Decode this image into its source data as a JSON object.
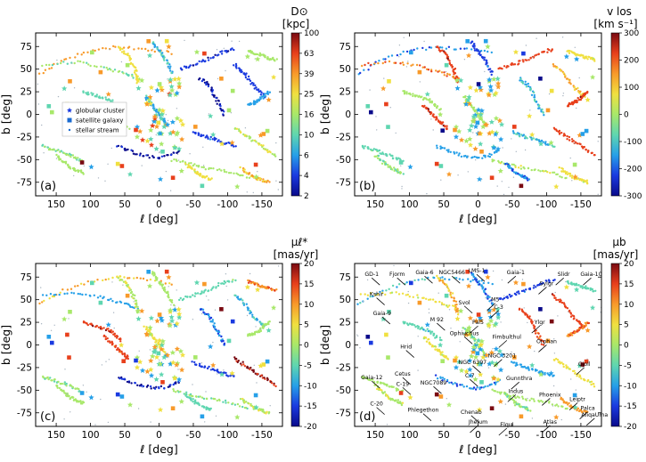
{
  "figure": {
    "panels": [
      {
        "id": "a",
        "panel_label": "(a)",
        "cbar_title": [
          "D⊙",
          "[kpc]"
        ],
        "cbar_ticks": [
          "100",
          "63",
          "39",
          "25",
          "16",
          "10",
          "6",
          "4",
          "2"
        ],
        "cbar_colors": [
          "#0a0a8a",
          "#1a3ae0",
          "#26a0e8",
          "#5fd6b0",
          "#a8e86a",
          "#f0e040",
          "#f89a2a",
          "#e8401c",
          "#7a0a12"
        ],
        "legend": [
          {
            "marker": "star",
            "label": "globular cluster"
          },
          {
            "marker": "square",
            "label": "satellite galaxy"
          },
          {
            "marker": "dot",
            "label": "stellar stream"
          }
        ]
      },
      {
        "id": "b",
        "panel_label": "(b)",
        "cbar_title": [
          "v los",
          "[km s⁻¹]"
        ],
        "cbar_ticks": [
          "300",
          "200",
          "100",
          "0",
          "-100",
          "-200",
          "-300"
        ],
        "cbar_colors": [
          "#0a0a8a",
          "#1a3ae0",
          "#26a0e8",
          "#5fd6b0",
          "#a8e86a",
          "#f0e040",
          "#f89a2a",
          "#e8401c",
          "#7a0a12"
        ]
      },
      {
        "id": "c",
        "panel_label": "(c)",
        "cbar_title": [
          "μℓ*",
          "[mas/yr]"
        ],
        "cbar_ticks": [
          "20",
          "15",
          "10",
          "5",
          "0",
          "-5",
          "-10",
          "-15",
          "-20"
        ],
        "cbar_colors": [
          "#0a0a8a",
          "#1a3ae0",
          "#26a0e8",
          "#5fd6b0",
          "#a8e86a",
          "#f0e040",
          "#f89a2a",
          "#e8401c",
          "#7a0a12"
        ]
      },
      {
        "id": "d",
        "panel_label": "(d)",
        "cbar_title": [
          "μb",
          "[mas/yr]"
        ],
        "cbar_ticks": [
          "20",
          "15",
          "10",
          "5",
          "0",
          "-5",
          "-10",
          "-15",
          "-20"
        ],
        "cbar_colors": [
          "#0a0a8a",
          "#1a3ae0",
          "#26a0e8",
          "#5fd6b0",
          "#a8e86a",
          "#f0e040",
          "#f89a2a",
          "#e8401c",
          "#7a0a12"
        ],
        "annotations": [
          "GD-1",
          "Fjorm",
          "Gaia-6",
          "NGC5466",
          "LMS-1",
          "Gaia-1",
          "Sylgr",
          "Slidr",
          "Gaia-10",
          "Kshir",
          "Svol",
          "M5",
          "C-3",
          "Gaia-9",
          "Pal5",
          "Ylgr",
          "M 92",
          "Ophiuchus",
          "Fimbulthul",
          "Orphan",
          "Hrid",
          "NGC 3201",
          "NGC 6397",
          "C-7",
          "Gunnthra",
          "Gjoll",
          "NGC7089",
          "Gaia-12",
          "Cetus",
          "C-19",
          "Indus",
          "Phoenix",
          "Leiptr",
          "C-20",
          "Phlegethon",
          "Chenab",
          "Palca",
          "AliqaUma",
          "Jhelum",
          "Elqui",
          "Atlas"
        ]
      }
    ]
  },
  "chart_data": [
    {
      "type": "scatter",
      "panel": "a",
      "xlabel": "ℓ [deg]",
      "ylabel": "b [deg]",
      "xlim": [
        180,
        -180
      ],
      "ylim": [
        -90,
        90
      ],
      "xticks": [
        150,
        100,
        50,
        0,
        -50,
        -100,
        -150
      ],
      "yticks": [
        75,
        50,
        25,
        0,
        -25,
        -50,
        -75
      ],
      "colorbar": {
        "label": "D⊙ [kpc]",
        "scale": "log",
        "ticks": [
          100,
          63,
          39,
          25,
          16,
          10,
          6,
          4,
          2
        ]
      },
      "legend": [
        "globular cluster",
        "satellite galaxy",
        "stellar stream"
      ],
      "series": [
        {
          "name": "stellar stream",
          "points": [
            [
              85,
              62
            ],
            [
              70,
              58
            ],
            [
              55,
              55
            ],
            [
              40,
              52
            ],
            [
              -40,
              55
            ],
            [
              -60,
              40
            ],
            [
              -75,
              30
            ],
            [
              -90,
              55
            ],
            [
              -110,
              60
            ],
            [
              -130,
              70
            ],
            [
              60,
              -20
            ],
            [
              40,
              -40
            ],
            [
              10,
              -45
            ],
            [
              -20,
              -50
            ],
            [
              -40,
              -52
            ],
            [
              -60,
              -55
            ],
            [
              -90,
              -60
            ],
            [
              -120,
              -70
            ],
            [
              20,
              15
            ],
            [
              -10,
              10
            ],
            [
              -80,
              35
            ],
            [
              -100,
              25
            ]
          ]
        },
        {
          "name": "globular cluster",
          "points": [
            [
              5,
              5
            ],
            [
              0,
              -10
            ],
            [
              -5,
              15
            ],
            [
              10,
              -20
            ],
            [
              -15,
              5
            ],
            [
              20,
              30
            ],
            [
              30,
              -30
            ],
            [
              -30,
              -20
            ],
            [
              50,
              -35
            ],
            [
              -50,
              25
            ]
          ]
        },
        {
          "name": "satellite galaxy",
          "points": [
            [
              105,
              85
            ],
            [
              130,
              65
            ],
            [
              -90,
              75
            ],
            [
              -100,
              -55
            ],
            [
              -70,
              -60
            ],
            [
              -130,
              -40
            ],
            [
              75,
              -55
            ],
            [
              160,
              -58
            ]
          ]
        }
      ]
    },
    {
      "type": "scatter",
      "panel": "b",
      "xlabel": "ℓ [deg]",
      "ylabel": "b [deg]",
      "xlim": [
        180,
        -180
      ],
      "ylim": [
        -90,
        90
      ],
      "xticks": [
        150,
        100,
        50,
        0,
        -50,
        -100,
        -150
      ],
      "yticks": [
        75,
        50,
        25,
        0,
        -25,
        -50,
        -75
      ],
      "colorbar": {
        "label": "v los [km s⁻¹]",
        "ticks": [
          300,
          200,
          100,
          0,
          -100,
          -200,
          -300
        ]
      }
    },
    {
      "type": "scatter",
      "panel": "c",
      "xlabel": "ℓ [deg]",
      "ylabel": "b [deg]",
      "xlim": [
        180,
        -180
      ],
      "ylim": [
        -90,
        90
      ],
      "xticks": [
        150,
        100,
        50,
        0,
        -50,
        -100,
        -150
      ],
      "yticks": [
        75,
        50,
        25,
        0,
        -25,
        -50,
        -75
      ],
      "colorbar": {
        "label": "μℓ* [mas/yr]",
        "ticks": [
          20,
          15,
          10,
          5,
          0,
          -5,
          -10,
          -15,
          -20
        ]
      }
    },
    {
      "type": "scatter",
      "panel": "d",
      "xlabel": "ℓ [deg]",
      "ylabel": "b [deg]",
      "xlim": [
        180,
        -180
      ],
      "ylim": [
        -90,
        90
      ],
      "xticks": [
        150,
        100,
        50,
        0,
        -50,
        -100,
        -150
      ],
      "yticks": [
        75,
        50,
        25,
        0,
        -25,
        -50,
        -75
      ],
      "colorbar": {
        "label": "μb [mas/yr]",
        "ticks": [
          20,
          15,
          10,
          5,
          0,
          -5,
          -10,
          -15,
          -20
        ]
      }
    }
  ]
}
